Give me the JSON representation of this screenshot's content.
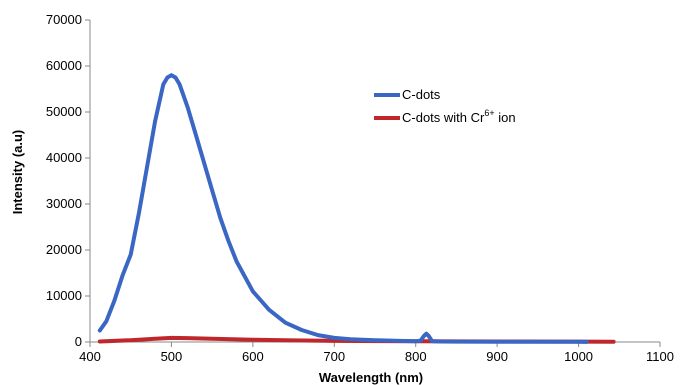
{
  "chart_data": {
    "type": "line",
    "xlabel": "Wavelength (nm)",
    "ylabel": "Intensity (a.u)",
    "xlim": [
      400,
      1100
    ],
    "ylim": [
      0,
      70000
    ],
    "x_ticks": [
      "400",
      "500",
      "600",
      "700",
      "800",
      "900",
      "1000",
      "1100"
    ],
    "y_ticks": [
      "0",
      "10000",
      "20000",
      "30000",
      "40000",
      "50000",
      "60000",
      "70000"
    ],
    "grid": false,
    "legend_position": "top-right",
    "series": [
      {
        "name": "C-dots",
        "color": "#3a66c4",
        "x": [
          412,
          420,
          430,
          440,
          450,
          460,
          470,
          480,
          490,
          495,
          500,
          505,
          510,
          520,
          530,
          540,
          550,
          560,
          570,
          580,
          600,
          620,
          640,
          660,
          680,
          700,
          720,
          750,
          780,
          800,
          806,
          810,
          813,
          816,
          820,
          830,
          850,
          900,
          950,
          1000,
          1010
        ],
        "y": [
          2500,
          4500,
          9000,
          14500,
          19000,
          28000,
          38000,
          48000,
          56000,
          57500,
          58000,
          57500,
          56000,
          51000,
          45000,
          39000,
          33000,
          27000,
          22000,
          17500,
          11000,
          7000,
          4200,
          2600,
          1500,
          900,
          600,
          400,
          250,
          150,
          300,
          1300,
          1800,
          1300,
          200,
          100,
          80,
          60,
          50,
          40,
          30
        ]
      },
      {
        "name": "C-dots with Cr",
        "name_sup": "6+",
        "name_suffix": " ion",
        "color": "#c0272d",
        "x": [
          412,
          450,
          480,
          500,
          520,
          550,
          600,
          650,
          700,
          800,
          900,
          1000,
          1043
        ],
        "y": [
          100,
          400,
          700,
          900,
          850,
          700,
          500,
          350,
          250,
          150,
          100,
          80,
          60
        ]
      }
    ]
  }
}
